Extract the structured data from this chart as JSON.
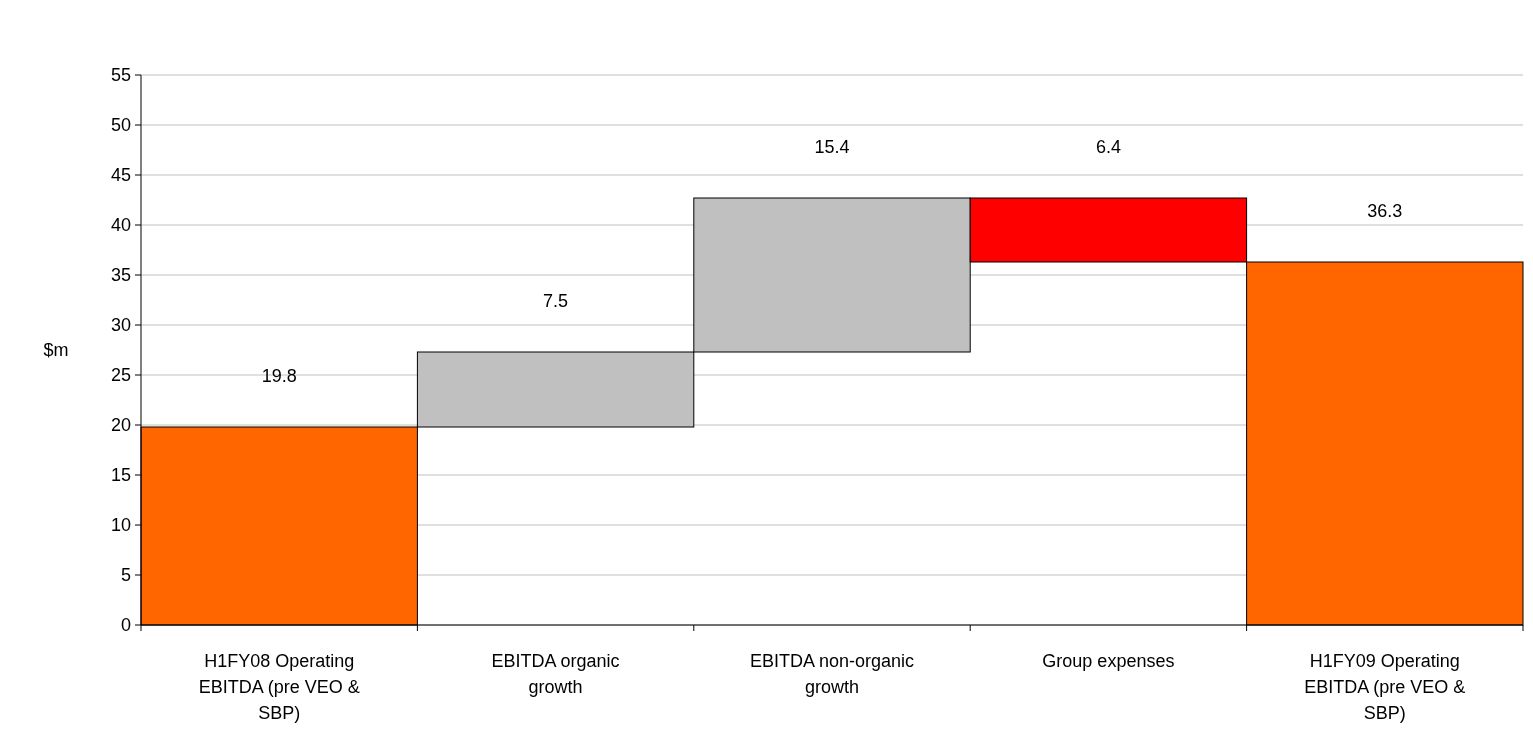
{
  "chart_data": {
    "type": "bar",
    "ylabel": "$m",
    "categories": [
      "H1FY08 Operating EBITDA (pre VEO & SBP)",
      "EBITDA organic growth",
      "EBITDA non-organic growth",
      "Group expenses",
      "H1FY09 Operating EBITDA (pre VEO & SBP)"
    ],
    "values": [
      19.8,
      7.5,
      15.4,
      6.4,
      36.3
    ],
    "base": [
      0,
      19.8,
      27.3,
      36.3,
      0
    ],
    "colors": [
      "#ff6600",
      "#c0c0c0",
      "#c0c0c0",
      "#ff0000",
      "#ff6600"
    ],
    "ylim": [
      0,
      55
    ],
    "yticks": [
      0,
      5,
      10,
      15,
      20,
      25,
      30,
      35,
      40,
      45,
      50,
      55
    ],
    "grid": "y",
    "data_labels": true
  }
}
